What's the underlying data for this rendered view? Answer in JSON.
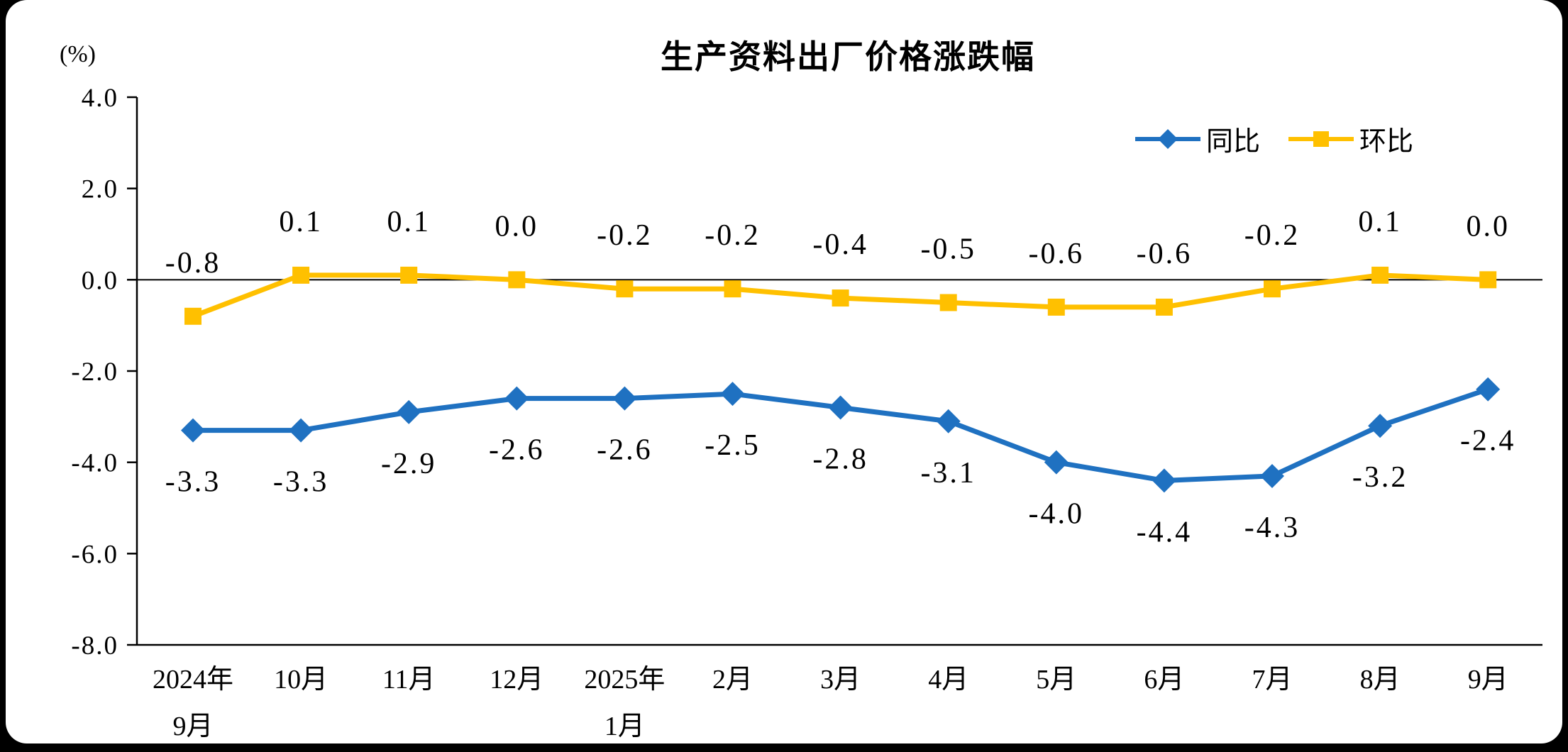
{
  "frame": {
    "background": "#000000",
    "panel_background": "#ffffff"
  },
  "chart_data": {
    "type": "line",
    "title": "生产资料出厂价格涨跌幅",
    "ylabel": "(%)",
    "xlabel": "",
    "ylim": [
      -8.0,
      4.0
    ],
    "ytick_step": 2,
    "ytick_labels": [
      "4.0",
      "2.0",
      "0.0",
      "-2.0",
      "-4.0",
      "-6.0",
      "-8.0"
    ],
    "grid": false,
    "legend_position": "top-right",
    "axis_color": "#000000",
    "label_color": "#000000",
    "categories": [
      [
        "2024年",
        "9月"
      ],
      [
        "10月"
      ],
      [
        "11月"
      ],
      [
        "12月"
      ],
      [
        "2025年",
        "1月"
      ],
      [
        "2月"
      ],
      [
        "3月"
      ],
      [
        "4月"
      ],
      [
        "5月"
      ],
      [
        "6月"
      ],
      [
        "7月"
      ],
      [
        "8月"
      ],
      [
        "9月"
      ]
    ],
    "series": [
      {
        "name": "同比",
        "color": "#1F71C1",
        "marker": "diamond",
        "values": [
          -3.3,
          -3.3,
          -2.9,
          -2.6,
          -2.6,
          -2.5,
          -2.8,
          -3.1,
          -4.0,
          -4.4,
          -4.3,
          -3.2,
          -2.4
        ],
        "labels": [
          "-3.3",
          "-3.3",
          "-2.9",
          "-2.6",
          "-2.6",
          "-2.5",
          "-2.8",
          "-3.1",
          "-4.0",
          "-4.4",
          "-4.3",
          "-3.2",
          "-2.4"
        ]
      },
      {
        "name": "环比",
        "color": "#FFC000",
        "marker": "square",
        "values": [
          -0.8,
          0.1,
          0.1,
          0.0,
          -0.2,
          -0.2,
          -0.4,
          -0.5,
          -0.6,
          -0.6,
          -0.2,
          0.1,
          0.0
        ],
        "labels": [
          "-0.8",
          "0.1",
          "0.1",
          "0.0",
          "-0.2",
          "-0.2",
          "-0.4",
          "-0.5",
          "-0.6",
          "-0.6",
          "-0.2",
          "0.1",
          "0.0"
        ]
      }
    ]
  }
}
